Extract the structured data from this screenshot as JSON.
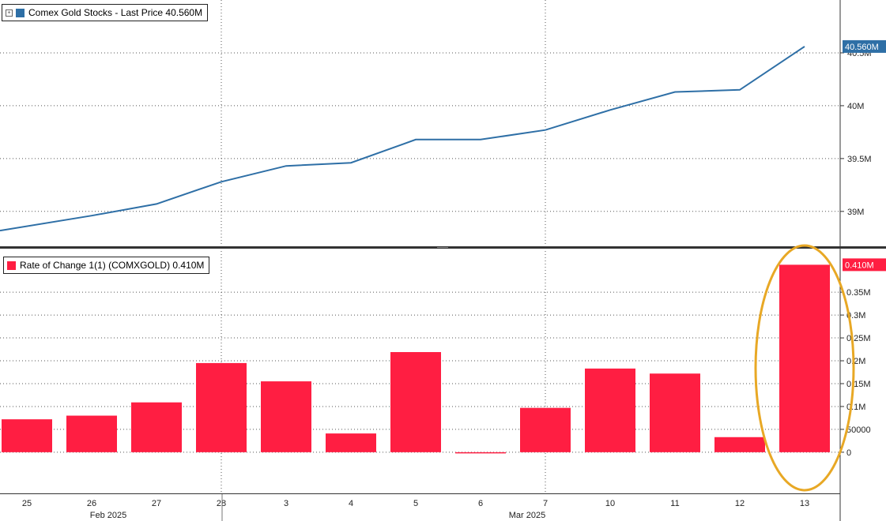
{
  "colors": {
    "line": "#2e6fa6",
    "bar": "#ff1e42",
    "highlight": "#e8a825",
    "grid": "#555555",
    "separator": "#333333"
  },
  "legend_top": {
    "icon": "expand-icon",
    "text": "Comex Gold Stocks - Last Price 40.560M"
  },
  "legend_bottom": {
    "text": "Rate of Change 1(1) (COMXGOLD) 0.410M"
  },
  "chart_data": [
    {
      "type": "line",
      "name": "Comex Gold Stocks - Last Price",
      "categories": [
        "25",
        "26",
        "27",
        "28",
        "3",
        "4",
        "5",
        "6",
        "7",
        "10",
        "11",
        "12",
        "13"
      ],
      "values": [
        38.86,
        38.96,
        39.07,
        39.28,
        39.43,
        39.46,
        39.68,
        39.68,
        39.77,
        39.96,
        40.13,
        40.15,
        40.56
      ],
      "y_ticks": [
        {
          "value": 39.0,
          "label": "39M"
        },
        {
          "value": 39.5,
          "label": "39.5M"
        },
        {
          "value": 40.0,
          "label": "40M"
        },
        {
          "value": 40.5,
          "label": "40.5M"
        }
      ],
      "ylim": [
        38.67,
        41.0
      ],
      "last_label": "40.560M",
      "grid": true
    },
    {
      "type": "bar",
      "name": "Rate of Change 1(1) (COMXGOLD)",
      "categories": [
        "25",
        "26",
        "27",
        "28",
        "3",
        "4",
        "5",
        "6",
        "7",
        "10",
        "11",
        "12",
        "13"
      ],
      "values": [
        0.072,
        0.08,
        0.109,
        0.195,
        0.155,
        0.041,
        0.219,
        -0.002,
        0.097,
        0.183,
        0.172,
        0.033,
        0.41
      ],
      "y_ticks": [
        {
          "value": 0,
          "label": "0"
        },
        {
          "value": 0.05,
          "label": "50000"
        },
        {
          "value": 0.1,
          "label": "0.1M"
        },
        {
          "value": 0.15,
          "label": "0.15M"
        },
        {
          "value": 0.2,
          "label": "0.2M"
        },
        {
          "value": 0.25,
          "label": "0.25M"
        },
        {
          "value": 0.3,
          "label": "0.3M"
        },
        {
          "value": 0.35,
          "label": "0.35M"
        }
      ],
      "ylim": [
        -0.09,
        0.44
      ],
      "last_label": "0.410M",
      "grid": true,
      "highlighted_category": "13"
    }
  ],
  "x_axis": {
    "months": [
      {
        "label": "Feb 2025",
        "at": "26"
      },
      {
        "label": "Mar 2025",
        "at": "6"
      }
    ],
    "month_divider_after": "28",
    "vertical_grid_at": [
      "28",
      "7"
    ]
  }
}
